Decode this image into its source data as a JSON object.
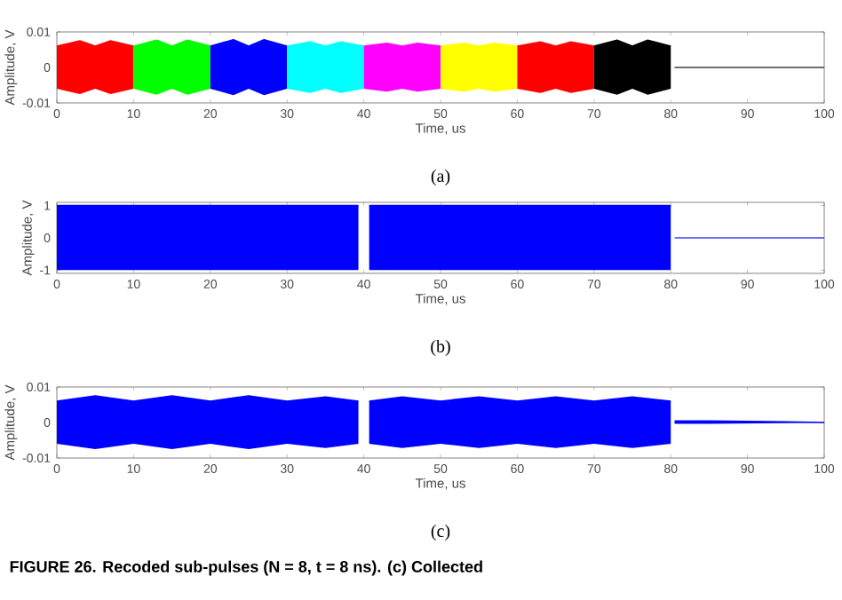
{
  "chart_data": [
    {
      "type": "line",
      "xlabel": "Time, us",
      "ylabel": "Amplitude, V",
      "xlim": [
        0,
        100
      ],
      "ylim": [
        -0.01,
        0.01
      ],
      "xticks": [
        0,
        10,
        20,
        30,
        40,
        50,
        60,
        70,
        80,
        90,
        100
      ],
      "yticks": [
        -0.01,
        0,
        0.01
      ],
      "annotations": [
        "(a)"
      ],
      "series": [
        {
          "color": "#ff0000",
          "x": [
            0,
            3,
            5,
            7,
            10
          ],
          "values": [
            0.006,
            0.0075,
            0.006,
            0.0075,
            0.006
          ],
          "upper": [
            0.006,
            0.0075,
            0.006,
            0.0075,
            0.006
          ],
          "lower": [
            -0.006,
            -0.0075,
            -0.006,
            -0.0075,
            -0.006
          ]
        },
        {
          "color": "#00ff00",
          "x": [
            10,
            13,
            15,
            17,
            20
          ],
          "values": [
            0.006,
            0.0077,
            0.006,
            0.0077,
            0.006
          ],
          "upper": [
            0.006,
            0.0077,
            0.006,
            0.0077,
            0.006
          ],
          "lower": [
            -0.006,
            -0.0077,
            -0.006,
            -0.0077,
            -0.006
          ]
        },
        {
          "color": "#0000ff",
          "x": [
            20,
            23,
            25,
            27,
            30
          ],
          "values": [
            0.006,
            0.0078,
            0.006,
            0.0078,
            0.006
          ],
          "upper": [
            0.006,
            0.0078,
            0.006,
            0.0078,
            0.006
          ],
          "lower": [
            -0.006,
            -0.0078,
            -0.006,
            -0.0078,
            -0.006
          ]
        },
        {
          "color": "#00ffff",
          "x": [
            30,
            33,
            35,
            37,
            40
          ],
          "values": [
            0.006,
            0.0072,
            0.006,
            0.0072,
            0.006
          ],
          "upper": [
            0.006,
            0.0072,
            0.006,
            0.0072,
            0.006
          ],
          "lower": [
            -0.006,
            -0.0072,
            -0.006,
            -0.0072,
            -0.006
          ]
        },
        {
          "color": "#ff00ff",
          "x": [
            40,
            43,
            45,
            47,
            50
          ],
          "values": [
            0.006,
            0.0068,
            0.006,
            0.0068,
            0.006
          ],
          "upper": [
            0.006,
            0.0068,
            0.006,
            0.0068,
            0.006
          ],
          "lower": [
            -0.006,
            -0.0068,
            -0.006,
            -0.0068,
            -0.006
          ]
        },
        {
          "color": "#ffff00",
          "x": [
            50,
            53,
            55,
            57,
            60
          ],
          "values": [
            0.006,
            0.0068,
            0.006,
            0.0068,
            0.006
          ],
          "upper": [
            0.006,
            0.0068,
            0.006,
            0.0068,
            0.006
          ],
          "lower": [
            -0.006,
            -0.0068,
            -0.006,
            -0.0068,
            -0.006
          ]
        },
        {
          "color": "#ff0000",
          "x": [
            60,
            63,
            65,
            67,
            70
          ],
          "values": [
            0.006,
            0.0072,
            0.006,
            0.0072,
            0.006
          ],
          "upper": [
            0.006,
            0.0072,
            0.006,
            0.0072,
            0.006
          ],
          "lower": [
            -0.006,
            -0.0072,
            -0.006,
            -0.0072,
            -0.006
          ]
        },
        {
          "color": "#000000",
          "x": [
            70,
            73,
            75,
            77,
            80
          ],
          "values": [
            0.006,
            0.0077,
            0.006,
            0.0077,
            0.006
          ],
          "upper": [
            0.006,
            0.0077,
            0.006,
            0.0077,
            0.006
          ],
          "lower": [
            -0.006,
            -0.0077,
            -0.006,
            -0.0077,
            -0.006
          ]
        },
        {
          "color": "#404040",
          "x": [
            80.5,
            100
          ],
          "values": [
            0,
            0
          ]
        }
      ]
    },
    {
      "type": "line",
      "xlabel": "Time, us",
      "ylabel": "Amplitude, V",
      "xlim": [
        0,
        100
      ],
      "ylim": [
        -1.1,
        1.1
      ],
      "xticks": [
        0,
        10,
        20,
        30,
        40,
        50,
        60,
        70,
        80,
        90,
        100
      ],
      "yticks": [
        -1,
        0,
        1
      ],
      "annotations": [
        "(b)"
      ],
      "series": [
        {
          "color": "#0000ff",
          "x": [
            0,
            39.3
          ],
          "values": [
            1,
            1
          ],
          "upper": [
            1,
            1
          ],
          "lower": [
            -1,
            -1
          ]
        },
        {
          "color": "#0000ff",
          "x": [
            40.7,
            80
          ],
          "values": [
            1,
            1
          ],
          "upper": [
            1,
            1
          ],
          "lower": [
            -1,
            -1
          ]
        },
        {
          "color": "#4040ff",
          "x": [
            80.5,
            100
          ],
          "values": [
            0,
            0
          ]
        }
      ]
    },
    {
      "type": "line",
      "xlabel": "Time, us",
      "ylabel": "Amplitude, V",
      "xlim": [
        0,
        100
      ],
      "ylim": [
        -0.01,
        0.01
      ],
      "xticks": [
        0,
        10,
        20,
        30,
        40,
        50,
        60,
        70,
        80,
        90,
        100
      ],
      "yticks": [
        -0.01,
        0,
        0.01
      ],
      "annotations": [
        "(c)",
        "FIGURE 26. Recoded sub-pulses (N = 8, t = 8 ns). (c) Collected"
      ],
      "series": [
        {
          "color": "#0000ff",
          "x": [
            0,
            5,
            10,
            15,
            20,
            25,
            30,
            35,
            39.3
          ],
          "values": [
            0.006,
            0.0075,
            0.006,
            0.0075,
            0.006,
            0.0075,
            0.006,
            0.0072,
            0.006
          ],
          "upper": [
            0.006,
            0.0075,
            0.006,
            0.0075,
            0.006,
            0.0075,
            0.006,
            0.0072,
            0.006
          ],
          "lower": [
            -0.006,
            -0.0075,
            -0.006,
            -0.0075,
            -0.006,
            -0.0075,
            -0.006,
            -0.0072,
            -0.006
          ]
        },
        {
          "color": "#0000ff",
          "x": [
            40.7,
            45,
            50,
            55,
            60,
            65,
            70,
            75,
            80
          ],
          "values": [
            0.006,
            0.0072,
            0.006,
            0.0072,
            0.006,
            0.0072,
            0.006,
            0.0072,
            0.006
          ],
          "upper": [
            0.006,
            0.0072,
            0.006,
            0.0072,
            0.006,
            0.0072,
            0.006,
            0.0072,
            0.006
          ],
          "lower": [
            -0.006,
            -0.0072,
            -0.006,
            -0.0072,
            -0.006,
            -0.0072,
            -0.006,
            -0.0072,
            -0.006
          ]
        },
        {
          "color": "#0000ff",
          "x": [
            80.5,
            85,
            95,
            100
          ],
          "values": [
            0.0004,
            0.0004,
            0.0002,
            0
          ],
          "upper": [
            0.0004,
            0.0004,
            0.0002,
            0
          ],
          "lower": [
            -0.0004,
            -0.0004,
            -0.0002,
            0
          ]
        }
      ]
    }
  ]
}
